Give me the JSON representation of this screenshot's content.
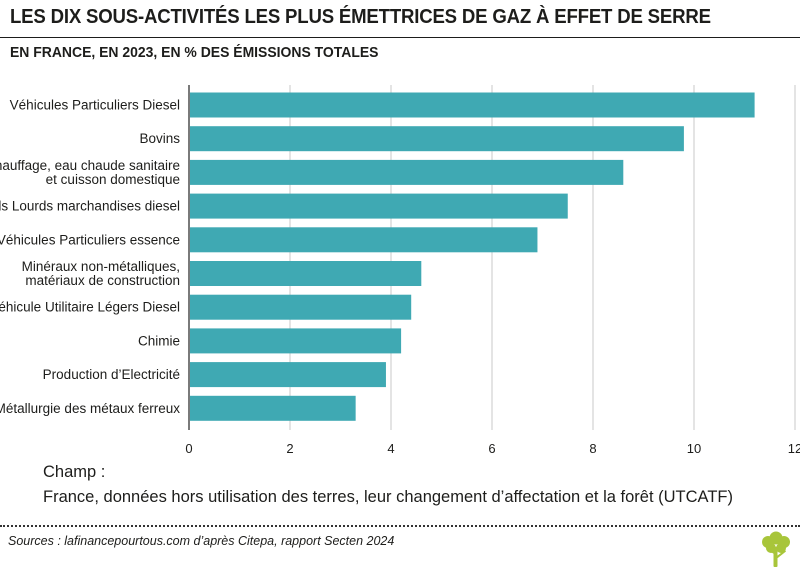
{
  "header": {
    "title": "LES DIX SOUS-ACTIVITÉS LES PLUS ÉMETTRICES DE GAZ À EFFET DE SERRE",
    "subtitle": "EN FRANCE, EN 2023, EN % DES ÉMISSIONS TOTALES"
  },
  "chart_data": {
    "type": "bar",
    "orientation": "horizontal",
    "title": "",
    "xlabel": "",
    "ylabel": "",
    "xlim": [
      0,
      12
    ],
    "xticks": [
      0,
      2,
      4,
      6,
      8,
      10,
      12
    ],
    "grid": "vertical",
    "bar_color": "#3fa9b3",
    "categories": [
      [
        "Véhicules Particuliers Diesel"
      ],
      [
        "Bovins"
      ],
      [
        "Chauffage, eau chaude sanitaire",
        "et cuisson domestique"
      ],
      [
        "Poids Lourds marchandises diesel"
      ],
      [
        "Véhicules Particuliers essence"
      ],
      [
        "Minéraux non-métalliques,",
        "matériaux de construction"
      ],
      [
        "Véhicule Utilitaire Légers Diesel"
      ],
      [
        "Chimie"
      ],
      [
        "Production d’Electricité"
      ],
      [
        "Métallurgie des métaux ferreux"
      ]
    ],
    "values": [
      11.2,
      9.8,
      8.6,
      7.5,
      6.9,
      4.6,
      4.4,
      4.2,
      3.9,
      3.3
    ]
  },
  "note": {
    "heading": "Champ :",
    "text": "France, données hors utilisation des terres, leur changement d’affectation et la forêt (UTCATF)"
  },
  "footer": {
    "source": "Sources : lafinancepourtous.com d’après Citepa, rapport Secten 2024",
    "logo_icon": "tree-icon",
    "logo_color": "#a8c53a"
  }
}
